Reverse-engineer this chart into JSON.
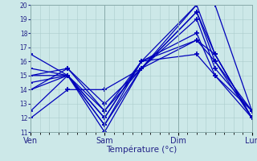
{
  "title": "",
  "xlabel": "Température (°c)",
  "ylabel": "",
  "ylim": [
    11,
    20
  ],
  "yticks": [
    11,
    12,
    13,
    14,
    15,
    16,
    17,
    18,
    19,
    20
  ],
  "day_labels": [
    "Ven",
    "Sam",
    "Dim",
    "Lun"
  ],
  "day_positions": [
    0,
    8,
    16,
    24
  ],
  "background_color": "#cce8e8",
  "grid_color": "#aacccc",
  "line_color": "#0000bb",
  "marker": "+",
  "markersize": 4,
  "linewidth": 0.9,
  "series": [
    [
      12.0,
      14.0,
      14.0,
      15.5,
      20.0,
      20.0,
      12.5
    ],
    [
      12.5,
      15.0,
      11.0,
      15.5,
      19.5,
      16.0,
      12.0
    ],
    [
      14.0,
      15.5,
      13.0,
      15.5,
      19.0,
      15.5,
      12.5
    ],
    [
      15.0,
      15.0,
      11.5,
      15.5,
      19.5,
      16.5,
      12.0
    ],
    [
      14.5,
      15.0,
      12.5,
      15.5,
      17.5,
      16.0,
      12.5
    ],
    [
      14.0,
      15.0,
      12.0,
      16.0,
      16.5,
      15.0,
      12.0
    ],
    [
      15.0,
      15.5,
      12.5,
      16.0,
      17.5,
      16.5,
      12.0
    ],
    [
      15.5,
      15.0,
      12.0,
      16.0,
      18.0,
      15.0,
      12.5
    ],
    [
      16.5,
      15.0,
      11.5,
      16.0,
      20.0,
      16.5,
      12.0
    ]
  ],
  "x_positions": [
    0,
    4,
    8,
    12,
    18,
    20,
    24
  ]
}
